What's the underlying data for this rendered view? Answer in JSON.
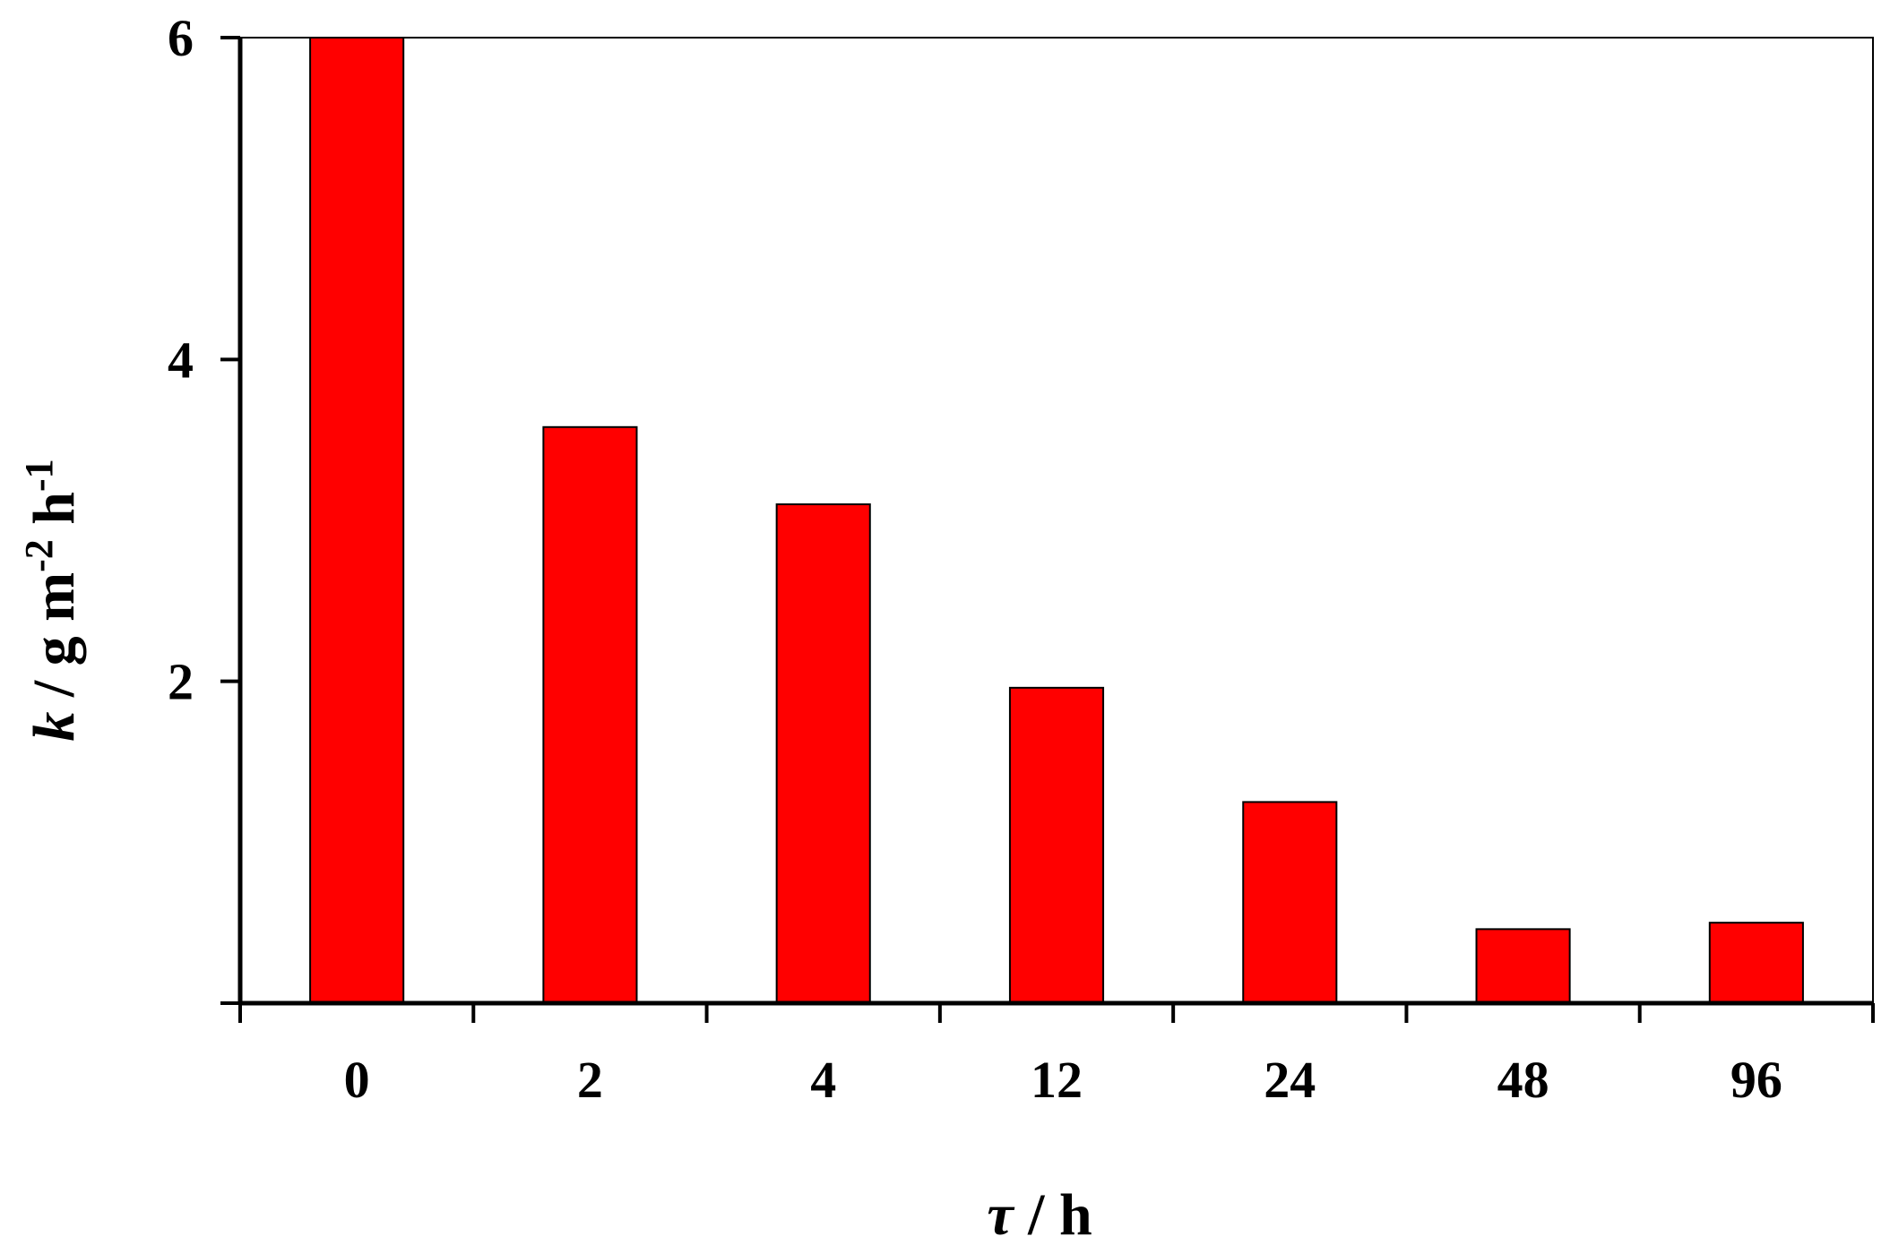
{
  "chart_data": {
    "type": "bar",
    "categories": [
      "0",
      "2",
      "4",
      "12",
      "24",
      "48",
      "96"
    ],
    "values": [
      6.0,
      3.58,
      3.1,
      1.96,
      1.25,
      0.46,
      0.5
    ],
    "ylim": [
      0,
      6
    ],
    "yticks": [
      "0",
      "2",
      "4",
      "6"
    ],
    "xlabel": {
      "var": "τ",
      "rest": " / h"
    },
    "ylabel": {
      "var": "k",
      "rest": " / g m",
      "sup1": "-2",
      "mid": " h",
      "sup2": "-1"
    },
    "bar_color": "#ff0000",
    "grid": false,
    "legend": "none"
  }
}
